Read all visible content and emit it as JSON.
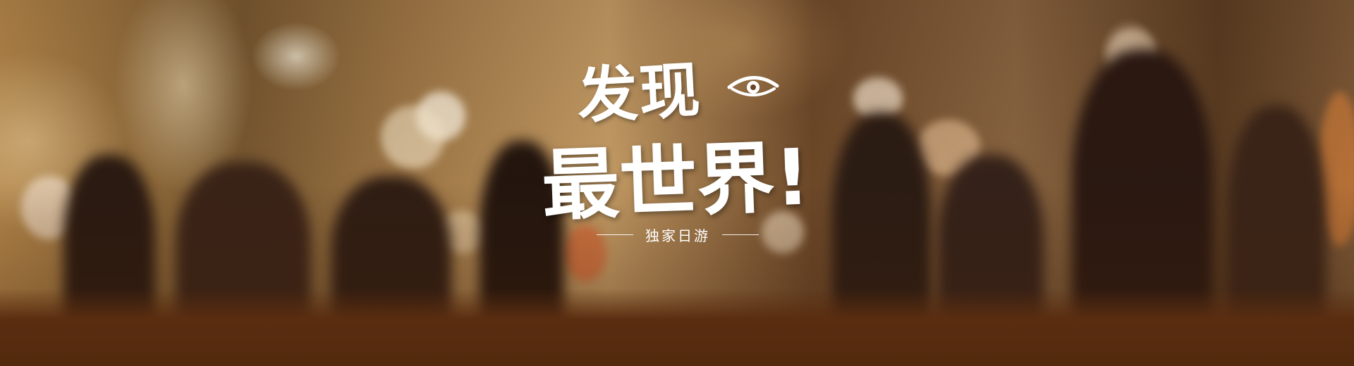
{
  "banner": {
    "title_line1": "发现",
    "title_line2": "最世界!",
    "subtitle": "独家日游",
    "decor_icon": "eye-icon",
    "colors": {
      "floor": "#5a2d10",
      "text": "#ffffff"
    }
  }
}
